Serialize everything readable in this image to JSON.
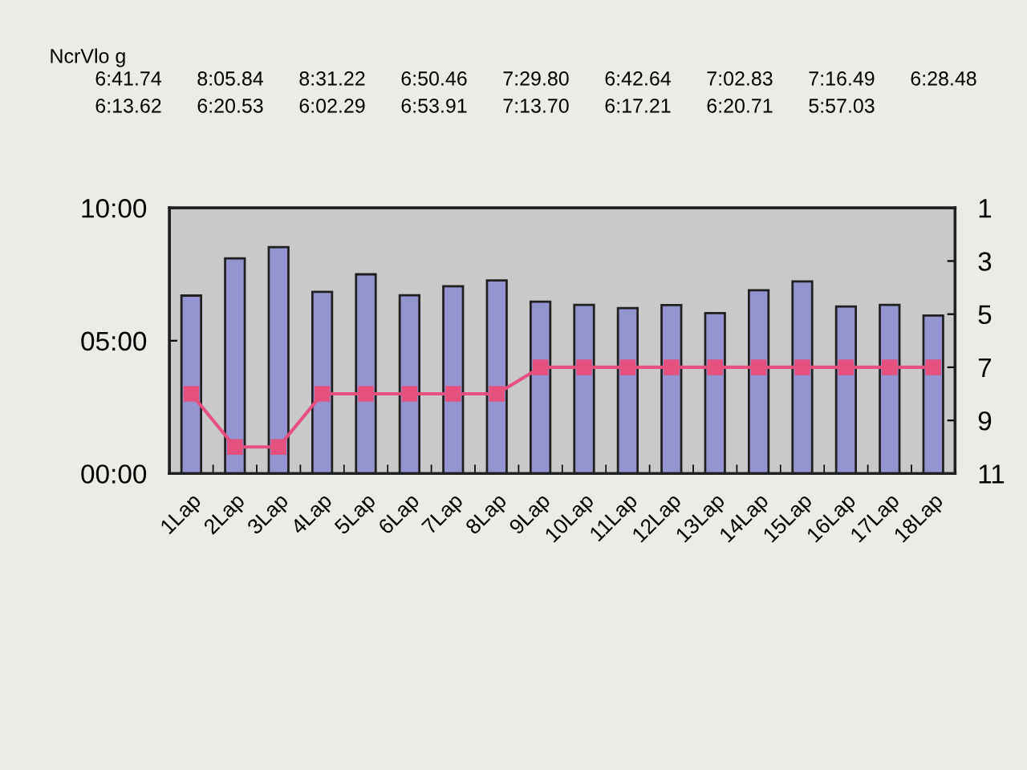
{
  "chart_data": {
    "type": "bar",
    "title": "NcrVlo g",
    "categories": [
      "1Lap",
      "2Lap",
      "3Lap",
      "4Lap",
      "5Lap",
      "6Lap",
      "7Lap",
      "8Lap",
      "9Lap",
      "10Lap",
      "11Lap",
      "12Lap",
      "13Lap",
      "14Lap",
      "15Lap",
      "16Lap",
      "17Lap",
      "18Lap"
    ],
    "series": [
      {
        "color": "#9494d0",
        "values": [
          6.7,
          8.1,
          8.52,
          6.84,
          7.5,
          6.71,
          7.05,
          7.27,
          6.47,
          6.35,
          6.23,
          6.34,
          6.04,
          6.9,
          7.23,
          6.29,
          6.35,
          5.95
        ]
      },
      {
        "type": "line",
        "axis": "y2",
        "color": "#e5507e",
        "values": [
          8,
          10,
          10,
          8,
          8,
          8,
          8,
          8,
          7,
          7,
          7,
          7,
          7,
          7,
          7,
          7,
          7,
          7
        ]
      }
    ],
    "ylim": [
      0,
      10
    ],
    "yticks": [
      {
        "value": 0,
        "label": "00:00"
      },
      {
        "value": 5,
        "label": "05:00"
      },
      {
        "value": 10,
        "label": "10:00"
      }
    ],
    "y2lim": [
      11,
      1
    ],
    "y2ticks": [
      1,
      3,
      5,
      7,
      9,
      11
    ],
    "annotations": [
      "6:41.74",
      "8:05.84",
      "8:31.22",
      "6:50.46",
      "7:29.80",
      "6:42.64",
      "7:02.83",
      "7:16.49",
      "6:28.48",
      "6:13.62",
      "6:20.53",
      "6:02.29",
      "6:53.91",
      "7:13.70",
      "6:17.21",
      "6:20.71",
      "5:57.03"
    ],
    "grid": false,
    "marker": "square"
  }
}
